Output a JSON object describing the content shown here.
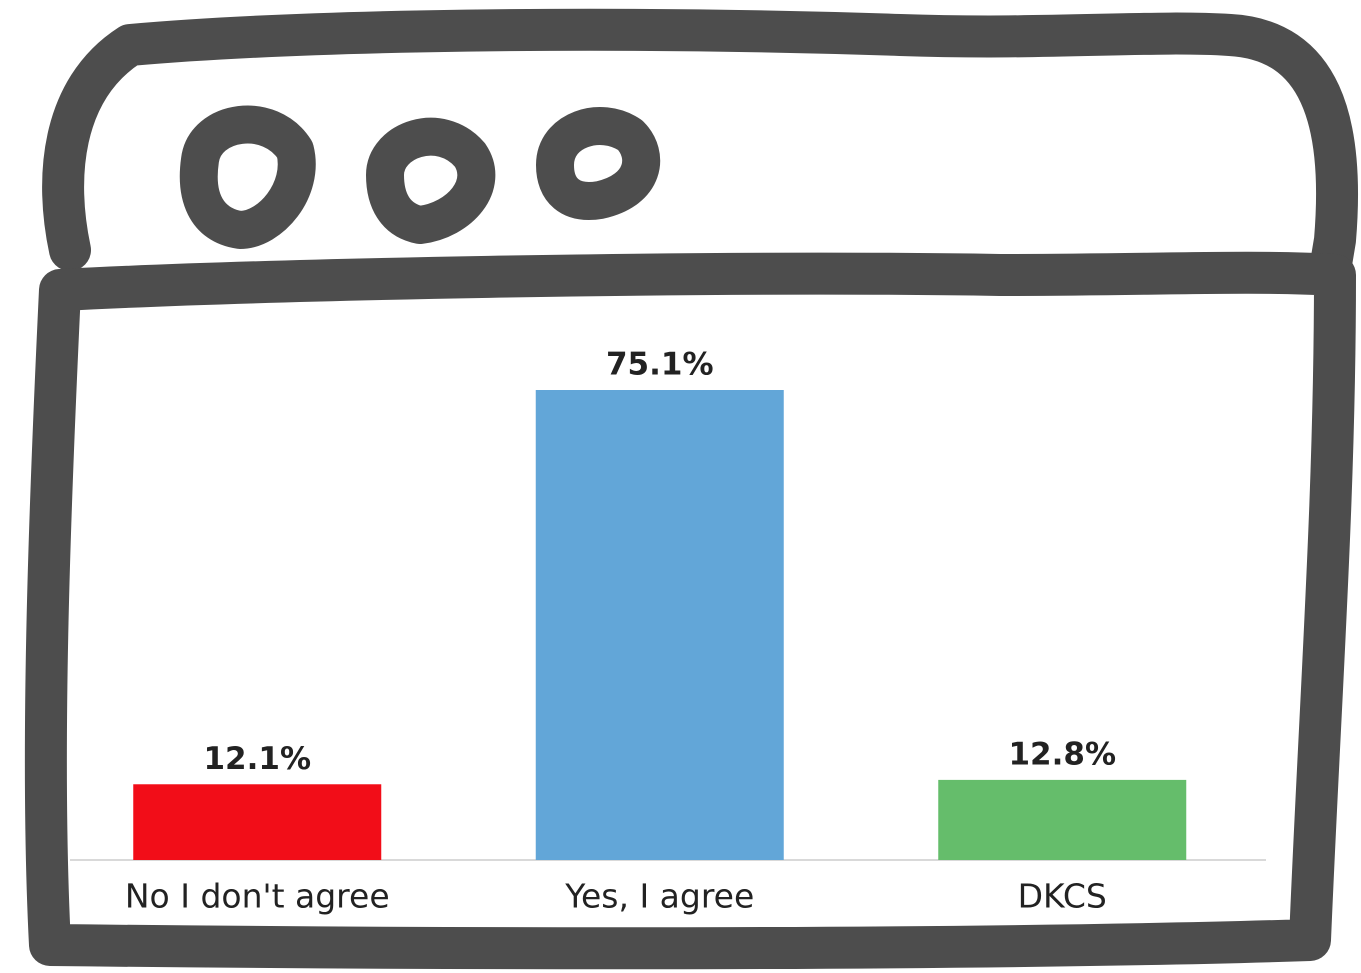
{
  "chart_data": {
    "type": "bar",
    "categories": [
      "No I don't agree",
      "Yes, I agree",
      "DKCS"
    ],
    "values": [
      12.1,
      75.1,
      12.8
    ],
    "value_labels": [
      "12.1%",
      "75.1%",
      "12.8%"
    ],
    "colors": [
      "#f20d18",
      "#62a6d8",
      "#65bd6b"
    ]
  }
}
